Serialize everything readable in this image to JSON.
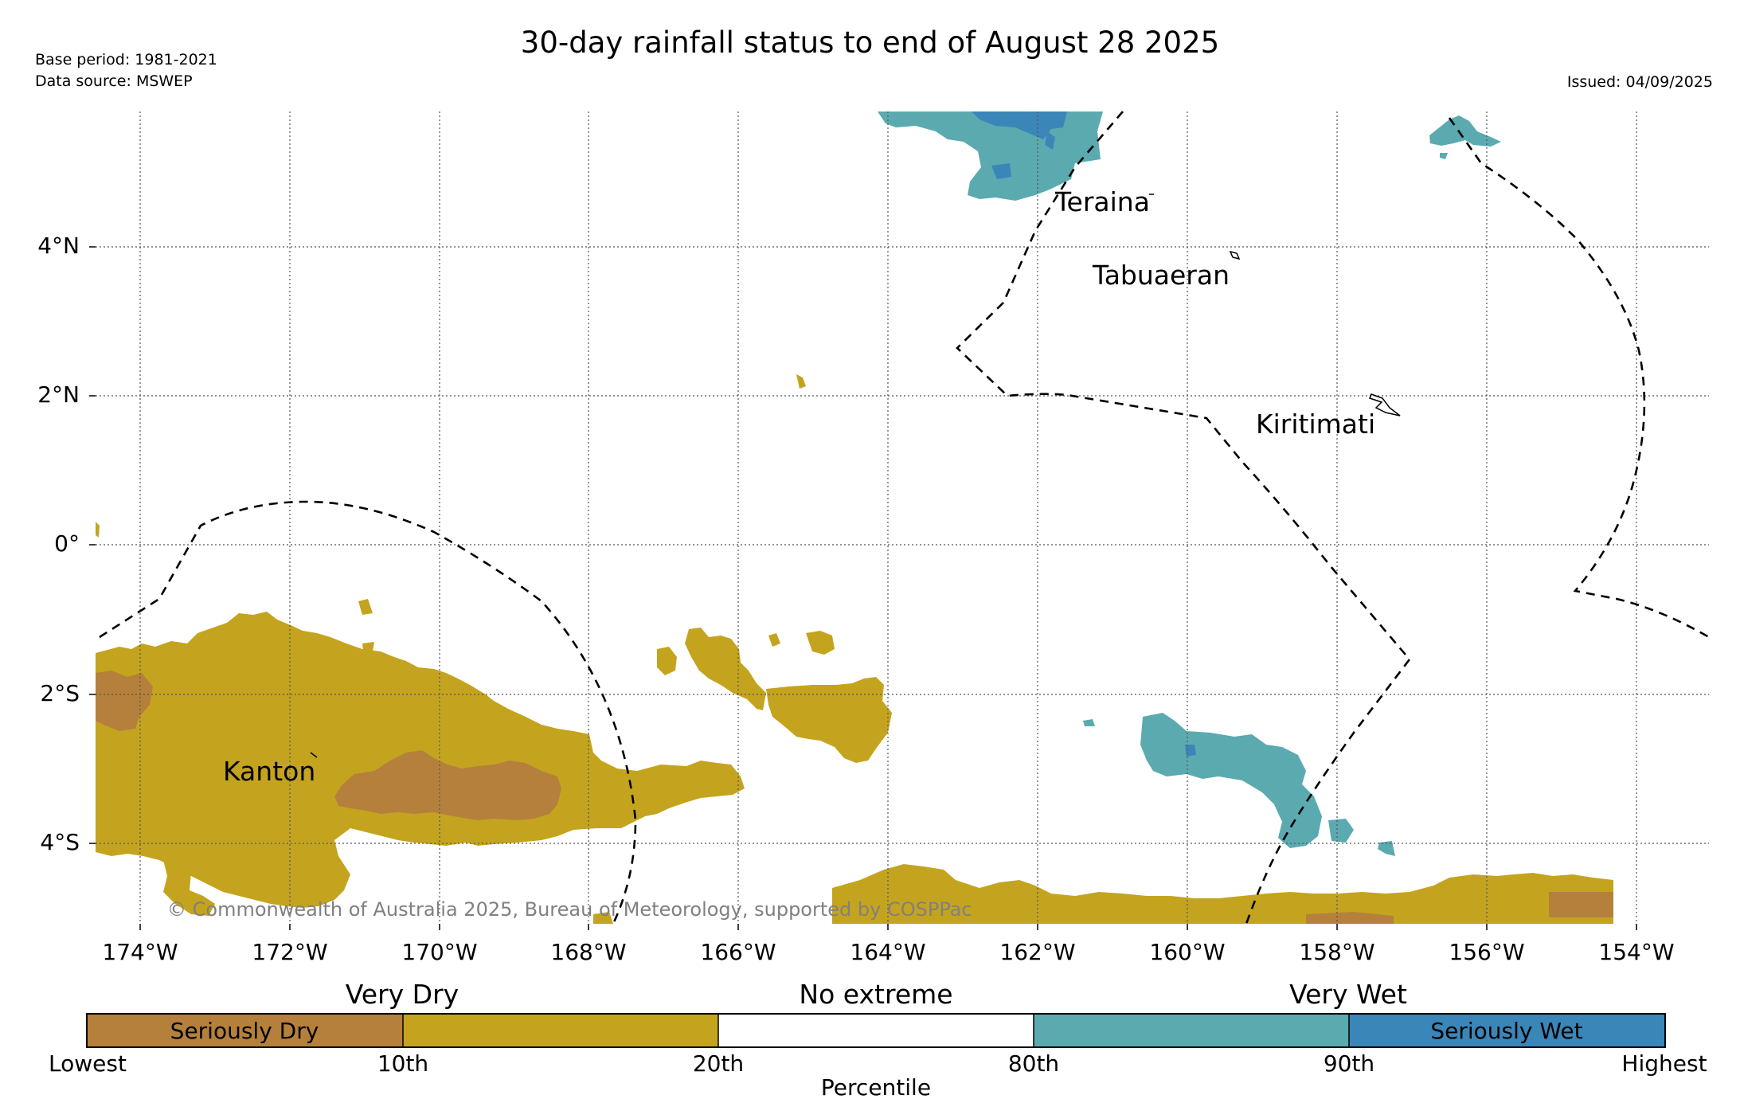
{
  "title": "30-day rainfall status to end of August 28 2025",
  "base_period": "Base period: 1981-2021",
  "data_source": "Data source: MSWEP",
  "issued": "Issued: 04/09/2025",
  "copyright": "© Commonwealth of Australia 2025, Bureau of Meteorology, supported by COSPPac",
  "lon_ticks": [
    "174°W",
    "172°W",
    "170°W",
    "168°W",
    "166°W",
    "164°W",
    "162°W",
    "160°W",
    "158°W",
    "156°W",
    "154°W"
  ],
  "lat_ticks": [
    "4°N",
    "2°N",
    "0°",
    "2°S",
    "4°S"
  ],
  "places": {
    "teraina": "Teraina",
    "tabuaeran": "Tabuaeran",
    "kiritimati": "Kiritimati",
    "kanton": "Kanton"
  },
  "legend": {
    "group_dry": "Very Dry",
    "group_none": "No extreme",
    "group_wet": "Very Wet",
    "seriously_dry": "Seriously Dry",
    "seriously_wet": "Seriously Wet",
    "ticks": [
      "Lowest",
      "10th",
      "20th",
      "80th",
      "90th",
      "Highest"
    ],
    "axis_label": "Percentile",
    "colors": {
      "seriously_dry": "#b5803c",
      "very_dry": "#c4a41e",
      "no_extreme": "#ffffff",
      "very_wet": "#5baab0",
      "seriously_wet": "#3a86b8"
    }
  }
}
